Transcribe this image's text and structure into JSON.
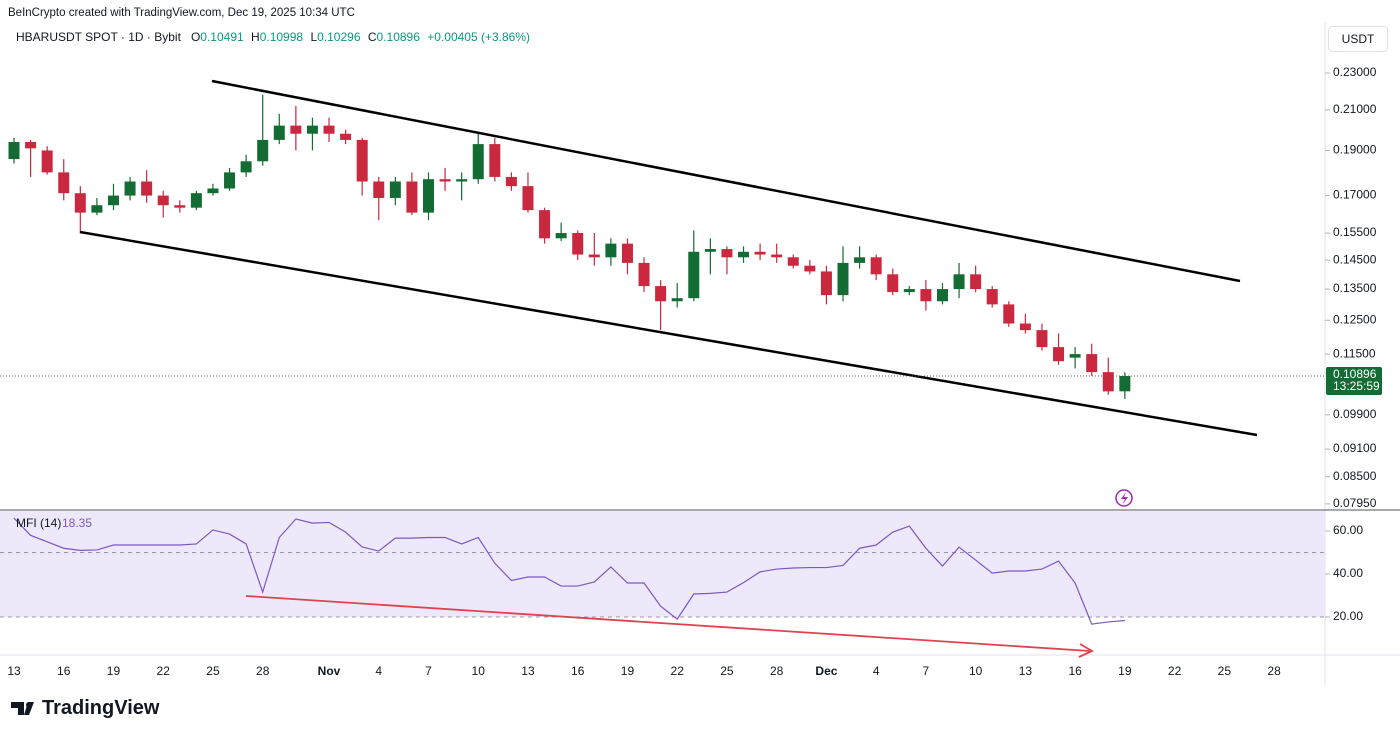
{
  "header": {
    "credit": "BeInCrypto created with TradingView.com, Dec 19, 2025 10:34 UTC",
    "symbol": "HBARUSDT SPOT · 1D · Bybit",
    "ohlc_labels": [
      "O",
      "H",
      "L",
      "C"
    ],
    "change": "+0.00405 (+3.86%)",
    "currency": "USDT",
    "countdown": "13:25:59",
    "brand": "TradingView"
  },
  "chart_data": [
    {
      "type": "candlestick",
      "log_scale": true,
      "up_color": "#136c33",
      "down_color": "#c9283e",
      "last_price_line": true,
      "categories": [
        "13",
        null,
        null,
        "16",
        null,
        null,
        "19",
        null,
        null,
        "22",
        null,
        null,
        "25",
        null,
        null,
        "28",
        null,
        null,
        null,
        "Nov",
        null,
        null,
        "4",
        null,
        null,
        "7",
        null,
        null,
        "10",
        null,
        null,
        "13",
        null,
        null,
        "16",
        null,
        null,
        "19",
        null,
        null,
        "22",
        null,
        null,
        "25",
        null,
        null,
        "28",
        null,
        null,
        "Dec",
        null,
        null,
        "4",
        null,
        null,
        "7",
        null,
        null,
        "10",
        null,
        null,
        "13",
        null,
        null,
        "16",
        null,
        null,
        "19",
        null,
        null,
        "22",
        null,
        null,
        "25",
        null,
        null,
        "28"
      ],
      "open": [
        0.186,
        0.194,
        0.19,
        0.18,
        0.171,
        0.163,
        0.166,
        0.17,
        0.176,
        0.17,
        0.166,
        0.165,
        0.171,
        0.173,
        0.18,
        0.185,
        0.195,
        0.202,
        0.198,
        0.202,
        0.198,
        0.195,
        0.176,
        0.169,
        0.176,
        0.163,
        0.177,
        0.176,
        0.177,
        0.193,
        0.178,
        0.174,
        0.164,
        0.153,
        0.155,
        0.147,
        0.146,
        0.151,
        0.144,
        0.136,
        0.131,
        0.132,
        0.148,
        0.149,
        0.146,
        0.148,
        0.147,
        0.146,
        0.143,
        0.141,
        0.133,
        0.144,
        0.146,
        0.14,
        0.134,
        0.135,
        0.131,
        0.135,
        0.14,
        0.135,
        0.13,
        0.124,
        0.122,
        0.117,
        0.114,
        0.115,
        0.11,
        0.10491,
        null,
        null,
        null,
        null,
        null,
        null,
        null,
        null,
        null
      ],
      "high": [
        0.196,
        0.195,
        0.192,
        0.186,
        0.174,
        0.169,
        0.175,
        0.178,
        0.181,
        0.172,
        0.168,
        0.172,
        0.175,
        0.182,
        0.188,
        0.218,
        0.208,
        0.212,
        0.206,
        0.206,
        0.2,
        0.196,
        0.178,
        0.178,
        0.18,
        0.18,
        0.182,
        0.18,
        0.198,
        0.196,
        0.18,
        0.18,
        0.165,
        0.159,
        0.156,
        0.155,
        0.153,
        0.153,
        0.146,
        0.138,
        0.137,
        0.156,
        0.153,
        0.15,
        0.15,
        0.151,
        0.151,
        0.147,
        0.145,
        0.143,
        0.15,
        0.15,
        0.147,
        0.142,
        0.136,
        0.138,
        0.137,
        0.144,
        0.143,
        0.136,
        0.131,
        0.127,
        0.124,
        0.121,
        0.117,
        0.118,
        0.114,
        0.10998,
        null,
        null,
        null,
        null,
        null,
        null,
        null,
        null,
        null
      ],
      "low": [
        0.184,
        0.178,
        0.179,
        0.168,
        0.155,
        0.162,
        0.164,
        0.168,
        0.167,
        0.161,
        0.163,
        0.164,
        0.17,
        0.172,
        0.178,
        0.183,
        0.193,
        0.19,
        0.19,
        0.194,
        0.193,
        0.17,
        0.16,
        0.166,
        0.162,
        0.16,
        0.172,
        0.168,
        0.175,
        0.176,
        0.172,
        0.163,
        0.151,
        0.152,
        0.145,
        0.143,
        0.143,
        0.14,
        0.134,
        0.122,
        0.129,
        0.131,
        0.14,
        0.14,
        0.144,
        0.145,
        0.144,
        0.142,
        0.14,
        0.13,
        0.131,
        0.142,
        0.138,
        0.133,
        0.133,
        0.128,
        0.13,
        0.132,
        0.134,
        0.129,
        0.123,
        0.121,
        0.116,
        0.112,
        0.111,
        0.109,
        0.104,
        0.10296,
        null,
        null,
        null,
        null,
        null,
        null,
        null,
        null,
        null
      ],
      "close": [
        0.194,
        0.191,
        0.18,
        0.171,
        0.163,
        0.166,
        0.17,
        0.176,
        0.17,
        0.166,
        0.165,
        0.171,
        0.173,
        0.18,
        0.185,
        0.195,
        0.202,
        0.198,
        0.202,
        0.198,
        0.195,
        0.176,
        0.169,
        0.176,
        0.163,
        0.177,
        0.176,
        0.177,
        0.193,
        0.178,
        0.174,
        0.164,
        0.153,
        0.155,
        0.147,
        0.146,
        0.151,
        0.144,
        0.136,
        0.131,
        0.132,
        0.148,
        0.149,
        0.146,
        0.148,
        0.147,
        0.146,
        0.143,
        0.141,
        0.133,
        0.144,
        0.146,
        0.14,
        0.134,
        0.135,
        0.131,
        0.135,
        0.14,
        0.135,
        0.13,
        0.124,
        0.122,
        0.117,
        0.113,
        0.115,
        0.11,
        0.1049,
        0.10896,
        null,
        null,
        null,
        null,
        null,
        null,
        null,
        null,
        null
      ],
      "ylim": [
        0.0783,
        0.2608
      ],
      "yticks": [
        {
          "value": 0.23,
          "label": "0.23000"
        },
        {
          "value": 0.21,
          "label": "0.21000"
        },
        {
          "value": 0.19,
          "label": "0.19000"
        },
        {
          "value": 0.17,
          "label": "0.17000"
        },
        {
          "value": 0.155,
          "label": "0.15500"
        },
        {
          "value": 0.145,
          "label": "0.14500"
        },
        {
          "value": 0.135,
          "label": "0.13500"
        },
        {
          "value": 0.125,
          "label": "0.12500"
        },
        {
          "value": 0.115,
          "label": "0.11500"
        },
        {
          "value": 0.099,
          "label": "0.09900"
        },
        {
          "value": 0.091,
          "label": "0.09100"
        },
        {
          "value": 0.085,
          "label": "0.08500"
        },
        {
          "value": 0.0795,
          "label": "0.07950"
        }
      ]
    },
    {
      "type": "line",
      "band": [
        20,
        80
      ],
      "levels": [
        20,
        50,
        80
      ],
      "band_color": "#ede9fb",
      "series": [
        {
          "name": "MFI (14)",
          "color": "#7e57c2",
          "values": [
            66,
            58,
            55,
            52,
            51,
            51.2,
            53.5,
            53.5,
            53.5,
            53.5,
            53.5,
            54,
            60.5,
            58.6,
            54,
            31.6,
            57,
            65.6,
            63.7,
            64,
            59.5,
            52.6,
            50.7,
            56.7,
            56.7,
            57,
            57,
            54,
            57,
            45,
            37,
            38.6,
            38.6,
            34.4,
            34.4,
            36.3,
            43.3,
            35.8,
            35.8,
            25,
            19,
            30.7,
            31,
            31.6,
            36,
            41,
            42.3,
            42.8,
            43,
            43,
            44,
            52,
            53.5,
            59.5,
            62.3,
            52,
            43.7,
            52.5,
            46.5,
            40.4,
            41.4,
            41.4,
            42.3,
            46,
            35.8,
            16.7,
            17.7,
            18.35,
            null,
            null,
            null,
            null,
            null,
            null,
            null,
            null,
            null
          ]
        }
      ],
      "ylim": [
        2.3,
        69.8
      ],
      "yticks": [
        {
          "value": 60,
          "label": "60.00"
        },
        {
          "value": 40,
          "label": "40.00"
        },
        {
          "value": 20,
          "label": "20.00"
        }
      ]
    }
  ]
}
